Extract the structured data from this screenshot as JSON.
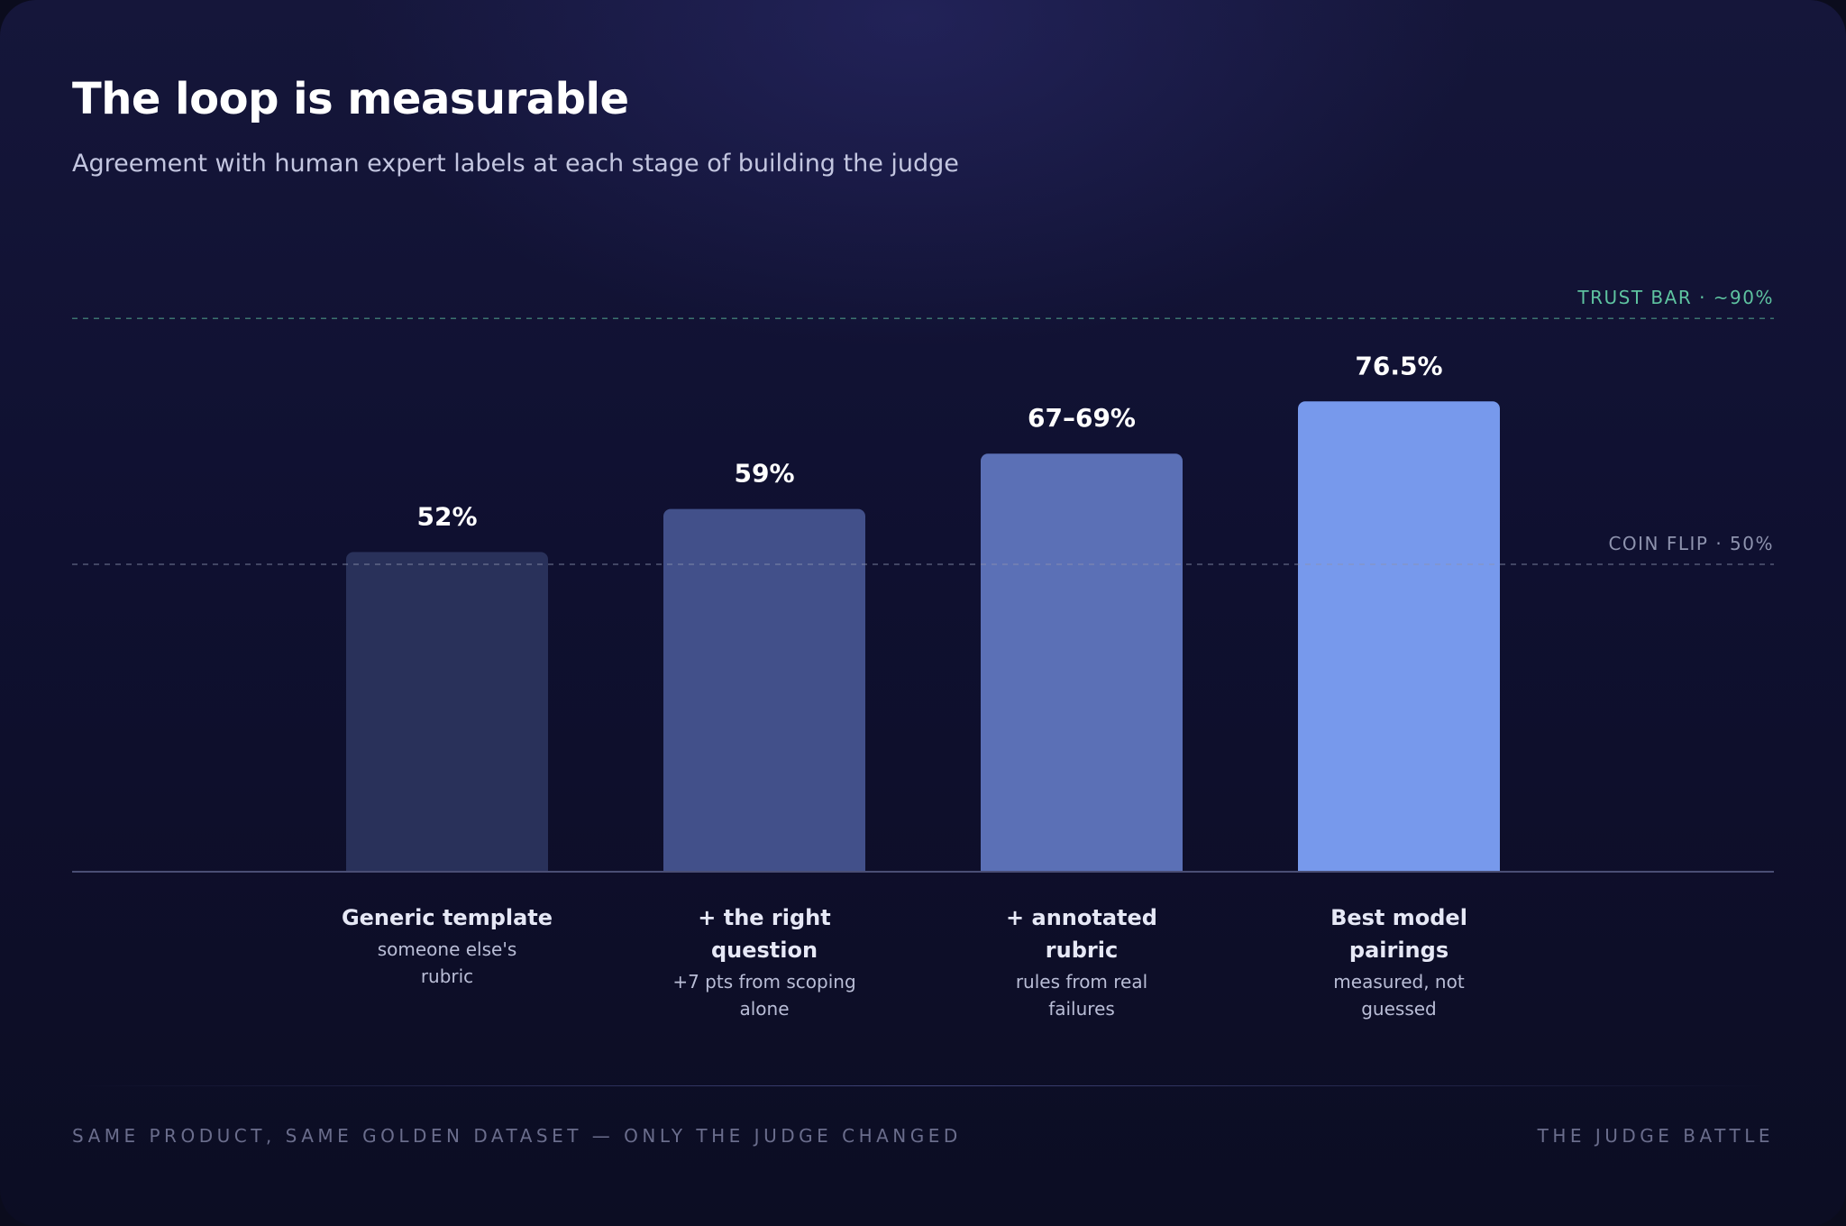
{
  "header": {
    "title": "The loop is measurable",
    "subtitle": "Agreement with human expert labels at each stage of building the judge"
  },
  "chart_data": {
    "type": "bar",
    "categories": [
      "Generic template",
      "+ the right question",
      "+ annotated rubric",
      "Best model pairings"
    ],
    "category_lines": [
      [
        "Generic template"
      ],
      [
        "+ the right",
        "question"
      ],
      [
        "+ annotated",
        "rubric"
      ],
      [
        "Best model",
        "pairings"
      ]
    ],
    "captions": [
      "someone else's rubric",
      "+7 pts from scoping alone",
      "rules from real failures",
      "measured, not guessed"
    ],
    "caption_lines": [
      [
        "someone else's",
        "rubric"
      ],
      [
        "+7 pts from scoping",
        "alone"
      ],
      [
        "rules from real",
        "failures"
      ],
      [
        "measured, not",
        "guessed"
      ]
    ],
    "values": [
      52,
      59,
      68,
      76.5
    ],
    "value_labels": [
      "52%",
      "59%",
      "67–69%",
      "76.5%"
    ],
    "bar_colors": [
      "#29315a",
      "#42508a",
      "#5b70b6",
      "#7799ec"
    ],
    "reference_lines": [
      {
        "value": 90,
        "label": "TRUST BAR · ~90%",
        "color": "#5ec3a0"
      },
      {
        "value": 50,
        "label": "COIN FLIP · 50%",
        "color": "#8e93ae"
      }
    ],
    "ylim": [
      0,
      100
    ],
    "grid": false,
    "legend": "none"
  },
  "footer": {
    "left": "SAME PRODUCT, SAME GOLDEN DATASET — ONLY THE JUDGE CHANGED",
    "right": "THE JUDGE BATTLE"
  }
}
